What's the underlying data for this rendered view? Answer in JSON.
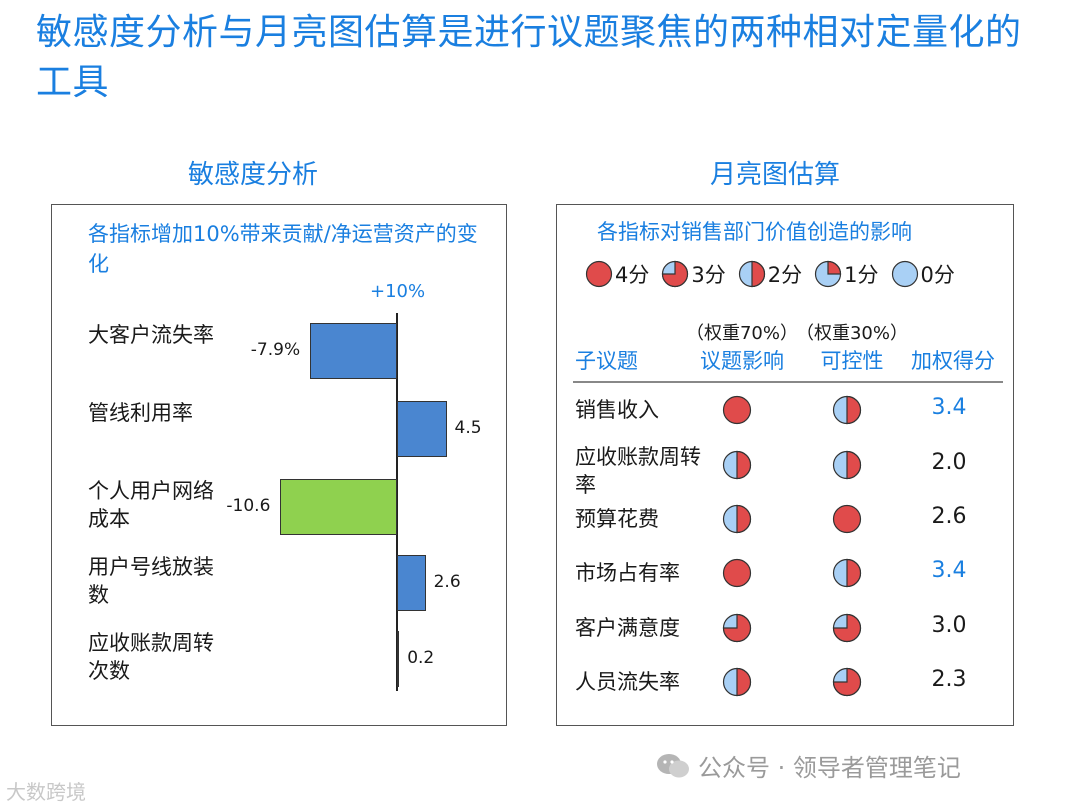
{
  "page": {
    "title": "敏感度分析与月亮图估算是进行议题聚焦的两种相对定量化的工具",
    "watermark": "公众号 · 领导者管理笔记",
    "corner_mark": "大数跨境"
  },
  "sensitivity": {
    "section_title": "敏感度分析",
    "subtitle": "各指标增加10%带来贡献/净运营资产的变化",
    "axis_label": "+10%"
  },
  "moon": {
    "section_title": "月亮图估算",
    "subtitle": "各指标对销售部门价值创造的影响",
    "legend": [
      {
        "label": "4分",
        "score": 4
      },
      {
        "label": "3分",
        "score": 3
      },
      {
        "label": "2分",
        "score": 2
      },
      {
        "label": "1分",
        "score": 1
      },
      {
        "label": "0分",
        "score": 0
      }
    ],
    "headers": {
      "sub_issue": "子议题",
      "impact_weight": "（权重70%）",
      "impact": "议题影响",
      "control_weight": "（权重30%）",
      "control": "可控性",
      "weighted": "加权得分"
    }
  },
  "chart_data": [
    {
      "type": "bar",
      "orientation": "horizontal",
      "title": "各指标增加10%带来贡献/净运营资产的变化",
      "categories": [
        "大客户流失率",
        "管线利用率",
        "个人用户网络成本",
        "用户号线放装数",
        "应收账款周转次数"
      ],
      "values": [
        -7.9,
        4.5,
        -10.6,
        2.6,
        0.2
      ],
      "labels": [
        "-7.9%",
        "4.5",
        "-10.6",
        "2.6",
        "0.2"
      ],
      "colors": [
        "#4a86d0",
        "#4a86d0",
        "#8fd14f",
        "#4a86d0",
        "#4a86d0"
      ],
      "xlim": [
        -12.5,
        5.5
      ],
      "grid": false
    },
    {
      "type": "table",
      "title": "各指标对销售部门价值创造的影响",
      "columns": [
        "子议题",
        "议题影响",
        "可控性",
        "加权得分"
      ],
      "rows": [
        {
          "name": "销售收入",
          "impact": 4,
          "control": 2,
          "weighted": "3.4",
          "highlight": true
        },
        {
          "name": "应收账款周转率",
          "impact": 2,
          "control": 2,
          "weighted": "2.0",
          "highlight": false
        },
        {
          "name": "预算花费",
          "impact": 2,
          "control": 4,
          "weighted": "2.6",
          "highlight": false
        },
        {
          "name": "市场占有率",
          "impact": 4,
          "control": 2,
          "weighted": "3.4",
          "highlight": true
        },
        {
          "name": "客户满意度",
          "impact": 3,
          "control": 3,
          "weighted": "3.0",
          "highlight": false
        },
        {
          "name": "人员流失率",
          "impact": 2,
          "control": 3,
          "weighted": "2.3",
          "highlight": false
        }
      ]
    }
  ],
  "colors": {
    "accent": "#1a7fe0",
    "moon_red": "#e04b4b",
    "moon_blue": "#a9d0f5",
    "bar_blue": "#4a86d0",
    "bar_green": "#8fd14f"
  }
}
